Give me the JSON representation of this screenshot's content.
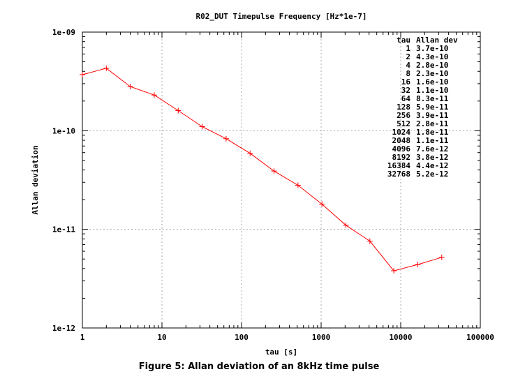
{
  "chart_data": {
    "type": "line",
    "title": "R02_DUT Timepulse Frequency [Hz*1e-7]",
    "xlabel": "tau [s]",
    "ylabel": "Allan deviation",
    "xscale": "log",
    "yscale": "log",
    "xlim": [
      1,
      100000
    ],
    "ylim": [
      1e-12,
      1e-09
    ],
    "x_tick_labels": [
      "1",
      "10",
      "100",
      "1000",
      "10000",
      "100000"
    ],
    "y_tick_labels": [
      "1e-12",
      "1e-11",
      "1e-10",
      "1e-09"
    ],
    "grid": true,
    "series": [
      {
        "color": "#ff0000",
        "marker": "plus",
        "x": [
          1,
          2,
          4,
          8,
          16,
          32,
          64,
          128,
          256,
          512,
          1024,
          2048,
          4096,
          8192,
          16384,
          32768
        ],
        "y": [
          3.7e-10,
          4.3e-10,
          2.8e-10,
          2.3e-10,
          1.6e-10,
          1.1e-10,
          8.3e-11,
          5.9e-11,
          3.9e-11,
          2.8e-11,
          1.8e-11,
          1.1e-11,
          7.6e-12,
          3.8e-12,
          4.4e-12,
          5.2e-12
        ]
      }
    ],
    "table": {
      "headers": [
        "tau",
        "Allan dev"
      ],
      "rows": [
        [
          "1",
          "3.7e-10"
        ],
        [
          "2",
          "4.3e-10"
        ],
        [
          "4",
          "2.8e-10"
        ],
        [
          "8",
          "2.3e-10"
        ],
        [
          "16",
          "1.6e-10"
        ],
        [
          "32",
          "1.1e-10"
        ],
        [
          "64",
          "8.3e-11"
        ],
        [
          "128",
          "5.9e-11"
        ],
        [
          "256",
          "3.9e-11"
        ],
        [
          "512",
          "2.8e-11"
        ],
        [
          "1024",
          "1.8e-11"
        ],
        [
          "2048",
          "1.1e-11"
        ],
        [
          "4096",
          "7.6e-12"
        ],
        [
          "8192",
          "3.8e-12"
        ],
        [
          "16384",
          "4.4e-12"
        ],
        [
          "32768",
          "5.2e-12"
        ]
      ]
    }
  },
  "caption": "Figure 5: Allan deviation of an 8kHz time pulse"
}
